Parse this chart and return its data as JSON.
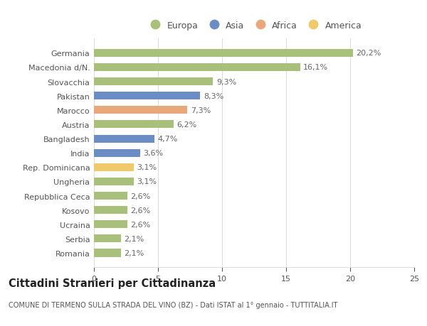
{
  "countries": [
    "Romania",
    "Serbia",
    "Ucraina",
    "Kosovo",
    "Repubblica Ceca",
    "Ungheria",
    "Rep. Dominicana",
    "India",
    "Bangladesh",
    "Austria",
    "Marocco",
    "Pakistan",
    "Slovacchia",
    "Macedonia d/N.",
    "Germania"
  ],
  "values": [
    2.1,
    2.1,
    2.6,
    2.6,
    2.6,
    3.1,
    3.1,
    3.6,
    4.7,
    6.2,
    7.3,
    8.3,
    9.3,
    16.1,
    20.2
  ],
  "labels": [
    "2,1%",
    "2,1%",
    "2,6%",
    "2,6%",
    "2,6%",
    "3,1%",
    "3,1%",
    "3,6%",
    "4,7%",
    "6,2%",
    "7,3%",
    "8,3%",
    "9,3%",
    "16,1%",
    "20,2%"
  ],
  "continents": [
    "Europa",
    "Europa",
    "Europa",
    "Europa",
    "Europa",
    "Europa",
    "America",
    "Asia",
    "Asia",
    "Europa",
    "Africa",
    "Asia",
    "Europa",
    "Europa",
    "Europa"
  ],
  "continent_colors": {
    "Europa": "#a8c07a",
    "Asia": "#6b8dc4",
    "Africa": "#e8a87c",
    "America": "#f0c96a"
  },
  "legend_order": [
    "Europa",
    "Asia",
    "Africa",
    "America"
  ],
  "legend_colors": [
    "#a8c07a",
    "#6b8dc4",
    "#e8a87c",
    "#f0c96a"
  ],
  "xlim": [
    0,
    25
  ],
  "xticks": [
    0,
    5,
    10,
    15,
    20,
    25
  ],
  "title": "Cittadini Stranieri per Cittadinanza",
  "subtitle": "COMUNE DI TERMENO SULLA STRADA DEL VINO (BZ) - Dati ISTAT al 1° gennaio - TUTTITALIA.IT",
  "background_color": "#ffffff",
  "grid_color": "#dddddd",
  "bar_height": 0.55,
  "label_fontsize": 8,
  "tick_fontsize": 8,
  "title_fontsize": 10.5,
  "subtitle_fontsize": 7
}
